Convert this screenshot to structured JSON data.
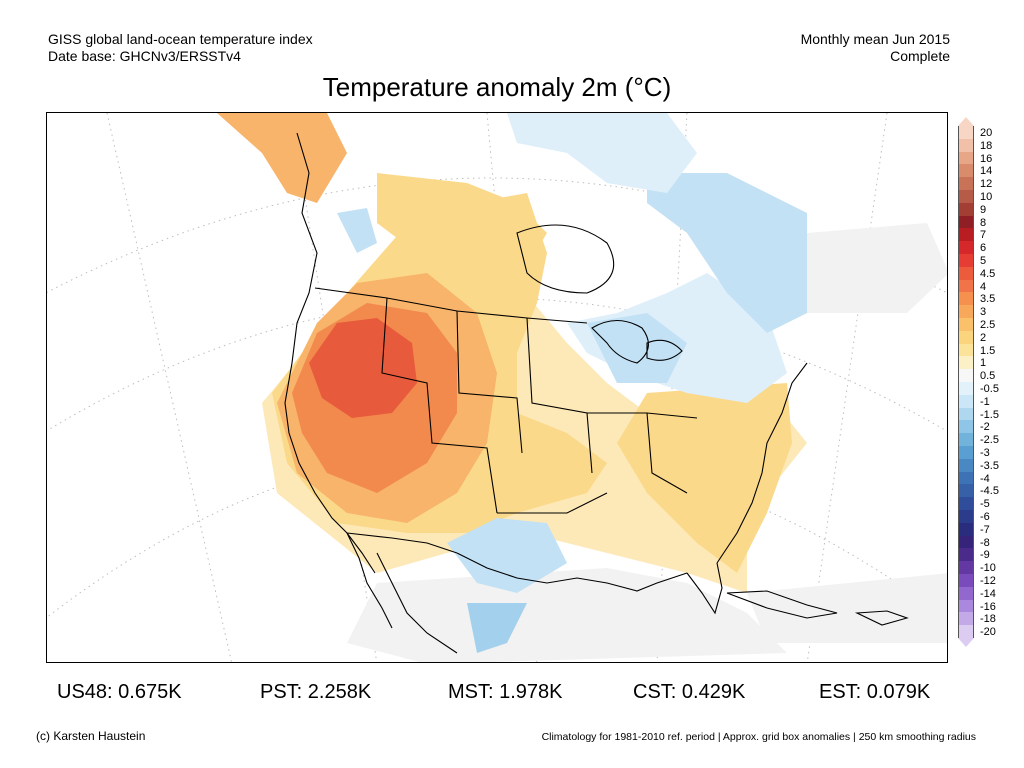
{
  "header": {
    "left_line1": "GISS global land-ocean temperature index",
    "left_line2": "Date base: GHCNv3/ERSSTv4",
    "right_line1": "Monthly mean Jun 2015",
    "right_line2": "Complete"
  },
  "title": "Temperature anomaly 2m (°C)",
  "colorbar": {
    "labels": [
      "20",
      "18",
      "16",
      "14",
      "12",
      "10",
      "9",
      "8",
      "7",
      "6",
      "5",
      "4.5",
      "4",
      "3.5",
      "3",
      "2.5",
      "2",
      "1.5",
      "1",
      "0.5",
      "-0.5",
      "-1",
      "-1.5",
      "-2",
      "-2.5",
      "-3",
      "-3.5",
      "-4",
      "-4.5",
      "-5",
      "-6",
      "-7",
      "-8",
      "-9",
      "-10",
      "-12",
      "-14",
      "-16",
      "-18",
      "-20"
    ],
    "colors": [
      "#f8d6c6",
      "#f2bfa8",
      "#e8a688",
      "#d98c6c",
      "#c87258",
      "#b65b48",
      "#a33e34",
      "#8f1f24",
      "#b71d21",
      "#d6282a",
      "#e53c34",
      "#ec5b3c",
      "#f17448",
      "#f5904f",
      "#f8a85a",
      "#fac06a",
      "#fbd57e",
      "#fbe39a",
      "#fbf0c6",
      "#f7f7f7",
      "#e3f1fb",
      "#cbe6f6",
      "#afd7ef",
      "#8fc5e6",
      "#72b3dc",
      "#5a9fd1",
      "#4a88c4",
      "#3e72b6",
      "#3660a8",
      "#2f4d9b",
      "#2b3c8c",
      "#2a2d7e",
      "#35247a",
      "#4a2b8c",
      "#6338a3",
      "#7a4cbb",
      "#9268cf",
      "#aa88dd",
      "#c3a9e8",
      "#dcccf2"
    ]
  },
  "stats": [
    {
      "label": "US48: 0.675K"
    },
    {
      "label": "PST: 2.258K"
    },
    {
      "label": "MST: 1.978K"
    },
    {
      "label": "CST: 0.429K"
    },
    {
      "label": "EST: 0.079K"
    }
  ],
  "footer": {
    "left": "(c) Karsten Haustein",
    "right": "Climatology for 1981-2010 ref. period | Approx. grid box anomalies | 250 km smoothing radius"
  },
  "map_colors": {
    "warm_strong": "#e85a3c",
    "warm_mid": "#f28a4e",
    "warm_light": "#f7b46a",
    "warm_pale": "#fbd98a",
    "warm_faint": "#fde9b8",
    "neutral": "#f2f2f2",
    "cool_faint": "#deeffa",
    "cool_light": "#c2e1f4",
    "cool_mid": "#a3d0ec",
    "coast": "#000000",
    "graticule": "#bdbdbd"
  }
}
